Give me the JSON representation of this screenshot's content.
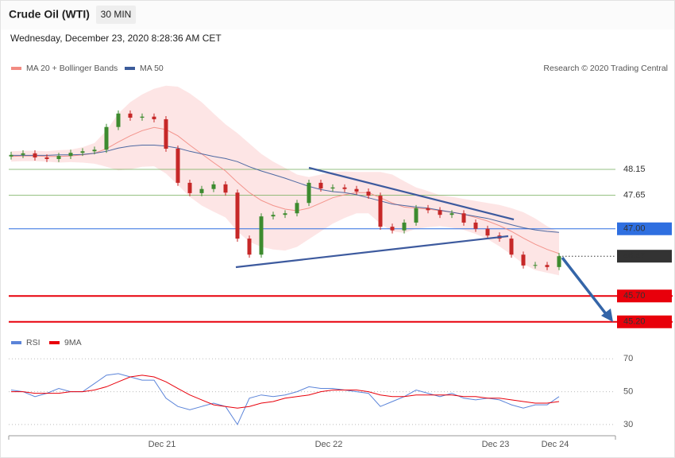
{
  "header": {
    "title": "Crude Oil (WTI)",
    "interval": "30 MIN",
    "timestamp": "Wednesday, December 23, 2020 8:28:36 AM CET"
  },
  "chart_data": [
    {
      "type": "candlestick",
      "source": "Research © 2020 Trading Central",
      "categories": [
        null,
        null,
        null,
        null,
        null,
        null,
        null,
        null,
        null,
        null,
        null,
        null,
        null,
        "Dec 21",
        null,
        null,
        null,
        null,
        null,
        null,
        null,
        null,
        null,
        null,
        null,
        null,
        null,
        "Dec 22",
        null,
        null,
        null,
        null,
        null,
        null,
        null,
        null,
        null,
        null,
        null,
        null,
        null,
        "Dec 23",
        null,
        null,
        null,
        null,
        "Dec 24"
      ],
      "open": [
        48.4,
        48.43,
        48.46,
        48.38,
        48.35,
        48.41,
        48.47,
        48.5,
        48.53,
        48.97,
        49.23,
        49.15,
        49.17,
        49.12,
        48.55,
        47.89,
        47.69,
        47.77,
        47.86,
        47.7,
        46.81,
        46.5,
        47.24,
        47.27,
        47.3,
        47.5,
        47.89,
        47.78,
        47.8,
        47.77,
        47.72,
        47.64,
        47.04,
        46.97,
        47.12,
        47.4,
        47.36,
        47.27,
        47.3,
        47.12,
        47.0,
        46.87,
        46.81,
        46.5,
        46.29,
        46.3,
        46.26
      ],
      "high": [
        48.49,
        48.52,
        48.52,
        48.44,
        48.47,
        48.53,
        48.56,
        48.59,
        49.03,
        49.29,
        49.29,
        49.23,
        49.23,
        49.18,
        48.61,
        47.95,
        47.83,
        47.92,
        47.92,
        47.76,
        46.87,
        47.3,
        47.33,
        47.36,
        47.56,
        47.95,
        47.95,
        47.86,
        47.86,
        47.83,
        47.78,
        47.7,
        47.1,
        47.18,
        47.46,
        47.46,
        47.42,
        47.36,
        47.36,
        47.18,
        47.06,
        46.93,
        46.87,
        46.56,
        46.36,
        46.36,
        46.53
      ],
      "low": [
        48.34,
        48.37,
        48.32,
        48.29,
        48.29,
        48.35,
        48.41,
        48.44,
        48.47,
        48.91,
        49.09,
        49.09,
        49.06,
        48.49,
        47.83,
        47.63,
        47.63,
        47.71,
        47.64,
        46.75,
        46.44,
        46.44,
        47.18,
        47.21,
        47.24,
        47.44,
        47.72,
        47.72,
        47.71,
        47.66,
        47.58,
        46.98,
        46.91,
        46.91,
        47.06,
        47.3,
        47.21,
        47.21,
        47.06,
        46.94,
        46.81,
        46.75,
        46.44,
        46.23,
        46.23,
        46.2,
        46.2
      ],
      "close": [
        48.43,
        48.46,
        48.38,
        48.35,
        48.41,
        48.47,
        48.5,
        48.53,
        48.97,
        49.23,
        49.15,
        49.17,
        49.12,
        48.55,
        47.89,
        47.69,
        47.77,
        47.86,
        47.7,
        46.81,
        46.5,
        47.24,
        47.27,
        47.3,
        47.5,
        47.89,
        47.78,
        47.8,
        47.77,
        47.72,
        47.64,
        47.04,
        46.97,
        47.12,
        47.4,
        47.36,
        47.27,
        47.3,
        47.12,
        47.0,
        46.87,
        46.81,
        46.5,
        46.29,
        46.3,
        46.26,
        46.47
      ],
      "up_color": "#3d8b2f",
      "down_color": "#c62828",
      "series": [
        {
          "name": "MA 20 + Bollinger Bands",
          "color": "#f28b82",
          "band_color": "#fde0e0",
          "values": [
            48.4,
            48.41,
            48.41,
            48.4,
            48.4,
            48.41,
            48.43,
            48.46,
            48.55,
            48.68,
            48.8,
            48.9,
            48.96,
            48.92,
            48.8,
            48.62,
            48.45,
            48.28,
            48.12,
            47.9,
            47.7,
            47.55,
            47.45,
            47.38,
            47.35,
            47.4,
            47.5,
            47.6,
            47.66,
            47.7,
            47.7,
            47.6,
            47.5,
            47.42,
            47.4,
            47.38,
            47.35,
            47.32,
            47.28,
            47.22,
            47.15,
            47.06,
            46.95,
            46.82,
            46.7,
            46.6,
            46.52
          ],
          "band_upper": [
            48.5,
            48.51,
            48.51,
            48.5,
            48.52,
            48.53,
            48.58,
            48.66,
            48.9,
            49.23,
            49.45,
            49.6,
            49.71,
            49.77,
            49.75,
            49.62,
            49.45,
            49.23,
            49.02,
            48.85,
            48.65,
            48.45,
            48.3,
            48.18,
            48.05,
            48.0,
            48.05,
            48.1,
            48.11,
            48.1,
            48.1,
            48.1,
            48.05,
            47.92,
            47.8,
            47.73,
            47.65,
            47.62,
            47.58,
            47.54,
            47.5,
            47.46,
            47.4,
            47.32,
            47.2,
            47.05,
            46.94
          ],
          "band_lower": [
            48.3,
            48.31,
            48.31,
            48.3,
            48.28,
            48.29,
            48.28,
            48.26,
            48.2,
            48.13,
            48.15,
            48.2,
            48.21,
            48.07,
            47.85,
            47.62,
            47.45,
            47.33,
            47.22,
            46.95,
            46.75,
            46.65,
            46.6,
            46.58,
            46.65,
            46.8,
            46.95,
            47.1,
            47.21,
            47.3,
            47.3,
            47.1,
            46.95,
            46.92,
            47.0,
            47.03,
            47.05,
            47.02,
            46.98,
            46.9,
            46.8,
            46.66,
            46.5,
            46.32,
            46.2,
            46.15,
            46.1
          ]
        },
        {
          "name": "MA 50",
          "color": "#3b5b9a",
          "values": [
            48.42,
            48.42,
            48.42,
            48.42,
            48.43,
            48.43,
            48.44,
            48.46,
            48.5,
            48.56,
            48.6,
            48.62,
            48.62,
            48.6,
            48.56,
            48.5,
            48.45,
            48.4,
            48.36,
            48.3,
            48.2,
            48.12,
            48.05,
            47.98,
            47.9,
            47.82,
            47.76,
            47.72,
            47.7,
            47.66,
            47.6,
            47.54,
            47.48,
            47.45,
            47.42,
            47.4,
            47.36,
            47.32,
            47.28,
            47.24,
            47.2,
            47.14,
            47.08,
            47.02,
            46.98,
            46.95,
            46.93
          ]
        }
      ],
      "ylim": [
        45.0,
        50.0
      ],
      "levels": [
        {
          "value": 48.15,
          "color": "#6aa84f",
          "box": false,
          "line": "solid"
        },
        {
          "value": 47.65,
          "color": "#6aa84f",
          "box": false,
          "line": "solid"
        },
        {
          "value": 47.0,
          "label": "47.00",
          "color": "#2f6fe0",
          "box": true,
          "line": "solid"
        },
        {
          "value": 46.47,
          "color": "#333333",
          "box": true,
          "line": "dotted"
        },
        {
          "value": 45.7,
          "label": "45.70",
          "color": "#e8000b",
          "box": true,
          "line": "solid"
        },
        {
          "value": 45.2,
          "label": "45.20",
          "color": "#e8000b",
          "box": true,
          "line": "solid"
        }
      ]
    },
    {
      "type": "line",
      "ylim": [
        20,
        78
      ],
      "yticks": [
        70,
        50,
        30
      ],
      "grid": true,
      "series": [
        {
          "name": "RSI",
          "color": "#5b84d9",
          "values": [
            51,
            50,
            47,
            49,
            52,
            50,
            50,
            55,
            60,
            61,
            59,
            57,
            57,
            46,
            41,
            39,
            41,
            43,
            41,
            30,
            46,
            48,
            47,
            48,
            50,
            53,
            52,
            52,
            51,
            50,
            49,
            41,
            44,
            47,
            51,
            49,
            47,
            49,
            46,
            45,
            46,
            45,
            42,
            40,
            42,
            42,
            47
          ]
        },
        {
          "name": "9MA",
          "color": "#e8000b",
          "values": [
            50,
            50,
            49,
            49,
            49,
            50,
            50,
            51,
            53,
            56,
            59,
            60,
            59,
            56,
            52,
            48,
            45,
            42,
            41,
            40,
            41,
            43,
            44,
            46,
            47,
            48,
            50,
            51,
            51,
            51,
            50,
            48,
            47,
            47,
            48,
            48,
            48,
            48,
            47,
            47,
            46,
            46,
            45,
            44,
            43,
            43,
            44
          ]
        }
      ]
    }
  ]
}
